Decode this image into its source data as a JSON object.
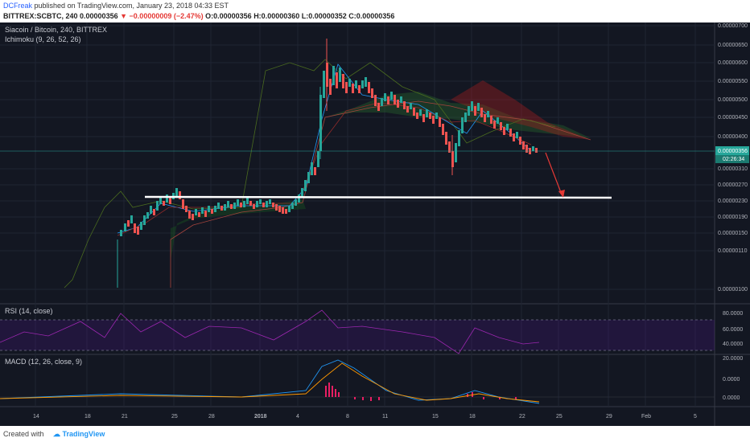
{
  "header": {
    "author": "DCFreak",
    "published": "published on TradingView.com, January 23, 2018 04:33 EST",
    "symbol": "BITTREX:SCBTC, 240",
    "last": "0.00000356",
    "change": "−0.00000009 (−2.47%)",
    "ohlc": "O:0.00000356  H:0.00000360  L:0.00000352  C:0.00000356"
  },
  "main_pane": {
    "title": "Siacoin / Bitcoin, 240, BITTREX",
    "indicator": "Ichimoku (9, 26, 52, 26)",
    "price_axis": [
      "0.00000700",
      "0.00000650",
      "0.00000600",
      "0.00000550",
      "0.00000500",
      "0.00000450",
      "0.00000400",
      "0.00000310",
      "0.00000270",
      "0.00000230",
      "0.00000190",
      "0.00000150",
      "0.00000110",
      "0.00000100"
    ],
    "current_price": "0.00000356",
    "countdown": "02:26:34"
  },
  "rsi_pane": {
    "title": "RSI (14, close)",
    "axis": [
      "80.0000",
      "60.0000",
      "40.0000",
      "20.0000"
    ]
  },
  "macd_pane": {
    "title": "MACD (12, 26, close, 9)",
    "axis": [
      "0.0000",
      "0.0000"
    ]
  },
  "time_axis": [
    "14",
    "18",
    "21",
    "25",
    "28",
    "2018",
    "4",
    "8",
    "11",
    "15",
    "18",
    "22",
    "25",
    "29",
    "Feb",
    "5"
  ],
  "footer": {
    "created_with": "Created with",
    "brand": "TradingView"
  },
  "colors": {
    "background": "#131722",
    "up_candle": "#26a69a",
    "down_candle": "#ef5350",
    "rsi_line": "#9c27b0",
    "macd_line": "#2196f3",
    "signal_line": "#ff9800",
    "price_tag": "#26a69a"
  }
}
